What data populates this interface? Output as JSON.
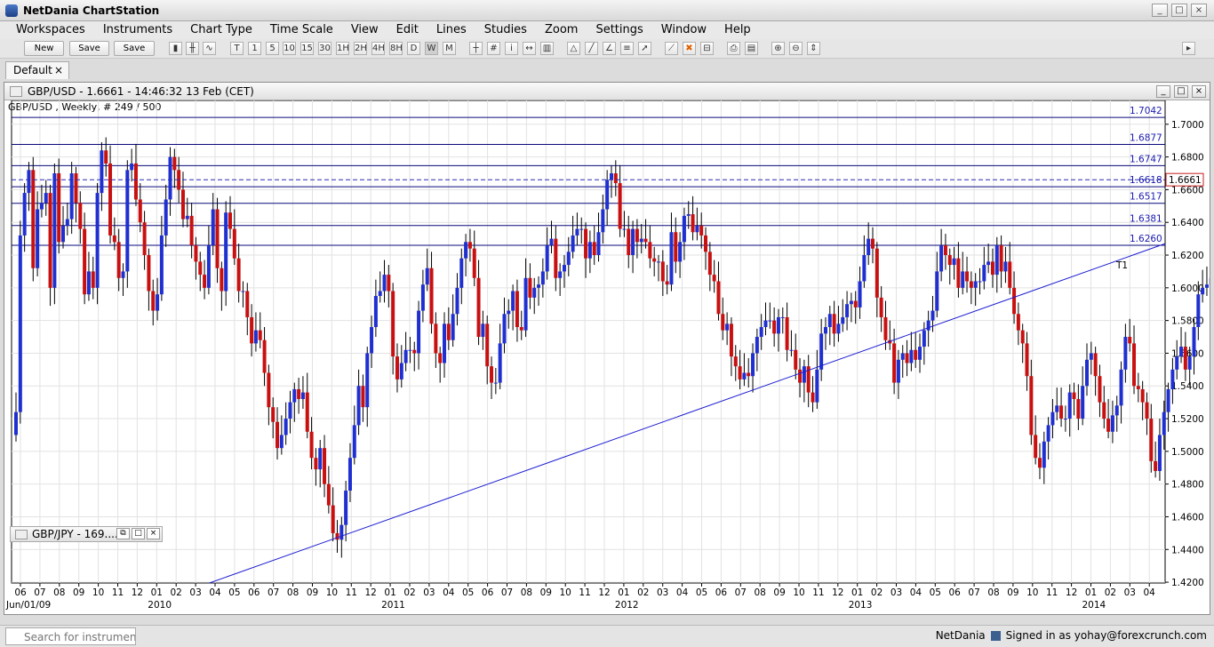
{
  "app": {
    "title": "NetDania ChartStation",
    "window_buttons": [
      "_",
      "□",
      "×"
    ]
  },
  "menu": [
    "Workspaces",
    "Instruments",
    "Chart Type",
    "Time Scale",
    "View",
    "Edit",
    "Lines",
    "Studies",
    "Zoom",
    "Settings",
    "Window",
    "Help"
  ],
  "toolbar": {
    "buttons": [
      {
        "label": "New"
      },
      {
        "label": "Save"
      },
      {
        "label": "Save as..."
      }
    ],
    "timeframes": [
      "T",
      "1",
      "5",
      "10",
      "15",
      "30",
      "1H",
      "2H",
      "4H",
      "8H",
      "D",
      "W",
      "M"
    ]
  },
  "tab": {
    "label": "Default",
    "close": "×"
  },
  "chart_window": {
    "title": "GBP/USD - 1.6661 - 14:46:32  13 Feb (CET)",
    "subtitle": "GBP/USD , Weekly, # 249 / 500",
    "window_buttons": [
      "_",
      "□",
      "×"
    ]
  },
  "minimized_window": {
    "title": "GBP/JPY - 169...."
  },
  "chart_data": {
    "type": "candlestick",
    "symbol": "GBP/USD",
    "period": "Weekly",
    "ylim": [
      1.4195,
      1.7075
    ],
    "yticks": [
      "1.7000",
      "1.6800",
      "1.6600",
      "1.6400",
      "1.6200",
      "1.6000",
      "1.5800",
      "1.5600",
      "1.5400",
      "1.5200",
      "1.5000",
      "1.4800",
      "1.4600",
      "1.4400",
      "1.4200"
    ],
    "xticks": [
      "06",
      "07",
      "08",
      "09",
      "10",
      "11",
      "12",
      "01",
      "02",
      "03",
      "04",
      "05",
      "06",
      "07",
      "08",
      "09",
      "10",
      "11",
      "12",
      "01",
      "02",
      "03",
      "04",
      "05",
      "06",
      "07",
      "08",
      "09",
      "10",
      "11",
      "12",
      "01",
      "02",
      "03",
      "04",
      "05",
      "06",
      "07",
      "08",
      "09",
      "10",
      "11",
      "12",
      "01",
      "02",
      "03",
      "04",
      "05",
      "06",
      "07",
      "08",
      "09",
      "10",
      "11",
      "12",
      "01",
      "02",
      "03",
      "04"
    ],
    "year_labels": [
      {
        "label": "Jun/01/09",
        "i": 0
      },
      {
        "label": "2010",
        "i": 7
      },
      {
        "label": "2011",
        "i": 19
      },
      {
        "label": "2012",
        "i": 31
      },
      {
        "label": "2013",
        "i": 43
      },
      {
        "label": "2014",
        "i": 55
      }
    ],
    "horizontal_lines": [
      {
        "label": "1.7042",
        "value": 1.7042
      },
      {
        "label": "1.6877",
        "value": 1.6877
      },
      {
        "label": "1.6747",
        "value": 1.6747
      },
      {
        "label": "1.6618",
        "value": 1.6618
      },
      {
        "label": "1.6517",
        "value": 1.6517
      },
      {
        "label": "1.6381",
        "value": 1.6381
      },
      {
        "label": "1.6260",
        "value": 1.626
      }
    ],
    "current_price": {
      "label": "1.6661",
      "value": 1.6661
    },
    "trendline": {
      "label": "T1",
      "start": {
        "week": "2010-05",
        "value": 1.4195
      },
      "end": {
        "week": "2014-04",
        "value": 1.627
      }
    },
    "colors": {
      "up": "#1f2fd0",
      "down": "#c81010",
      "lines": "#0a0a7a",
      "trend": "#1e1ed2",
      "price_line": "#2a2ab8",
      "price_box": "#c81e1e"
    },
    "closes": [
      1.524,
      1.632,
      1.658,
      1.672,
      1.612,
      1.648,
      1.652,
      1.658,
      1.6,
      1.67,
      1.628,
      1.638,
      1.642,
      1.67,
      1.652,
      1.636,
      1.596,
      1.61,
      1.6,
      1.658,
      1.684,
      1.676,
      1.632,
      1.628,
      1.606,
      1.61,
      1.672,
      1.676,
      1.654,
      1.64,
      1.62,
      1.598,
      1.586,
      1.596,
      1.632,
      1.654,
      1.68,
      1.672,
      1.66,
      1.642,
      1.644,
      1.626,
      1.616,
      1.608,
      1.6,
      1.626,
      1.648,
      1.612,
      1.598,
      1.646,
      1.636,
      1.618,
      1.598,
      1.598,
      1.582,
      1.566,
      1.574,
      1.568,
      1.548,
      1.527,
      1.518,
      1.502,
      1.51,
      1.52,
      1.53,
      1.538,
      1.532,
      1.536,
      1.512,
      1.496,
      1.489,
      1.502,
      1.48,
      1.467,
      1.45,
      1.446,
      1.455,
      1.476,
      1.496,
      1.516,
      1.54,
      1.527,
      1.56,
      1.576,
      1.595,
      1.598,
      1.608,
      1.598,
      1.558,
      1.544,
      1.554,
      1.562,
      1.562,
      1.56,
      1.586,
      1.602,
      1.612,
      1.578,
      1.56,
      1.554,
      1.578,
      1.568,
      1.584,
      1.6,
      1.618,
      1.628,
      1.624,
      1.606,
      1.57,
      1.578,
      1.552,
      1.542,
      1.542,
      1.566,
      1.584,
      1.586,
      1.598,
      1.576,
      1.574,
      1.606,
      1.594,
      1.6,
      1.602,
      1.61,
      1.626,
      1.63,
      1.606,
      1.61,
      1.614,
      1.622,
      1.632,
      1.636,
      1.636,
      1.618,
      1.628,
      1.62,
      1.634,
      1.648,
      1.666,
      1.67,
      1.664,
      1.636,
      1.636,
      1.62,
      1.636,
      1.628,
      1.63,
      1.628,
      1.618,
      1.616,
      1.616,
      1.604,
      1.602,
      1.634,
      1.616,
      1.628,
      1.644,
      1.645,
      1.634,
      1.638,
      1.632,
      1.622,
      1.608,
      1.604,
      1.584,
      1.574,
      1.578,
      1.558,
      1.552,
      1.544,
      1.548,
      1.546,
      1.56,
      1.57,
      1.576,
      1.58,
      1.58,
      1.572,
      1.582,
      1.582,
      1.562,
      1.562,
      1.55,
      1.542,
      1.552,
      1.536,
      1.53,
      1.55,
      1.572,
      1.576,
      1.584,
      1.572,
      1.578,
      1.582,
      1.59,
      1.592,
      1.588,
      1.604,
      1.62,
      1.63,
      1.624,
      1.594,
      1.582,
      1.568,
      1.566,
      1.542,
      1.556,
      1.56,
      1.554,
      1.562,
      1.556,
      1.564,
      1.574,
      1.58,
      1.586,
      1.61,
      1.626,
      1.62,
      1.614,
      1.618,
      1.6,
      1.61,
      1.604,
      1.6,
      1.604,
      1.604,
      1.614,
      1.616,
      1.608,
      1.626,
      1.61,
      1.616,
      1.6,
      1.584,
      1.574,
      1.566,
      1.546,
      1.51,
      1.496,
      1.49,
      1.506,
      1.516,
      1.524,
      1.528,
      1.52,
      1.52,
      1.536,
      1.532,
      1.52,
      1.54,
      1.556,
      1.56,
      1.546,
      1.53,
      1.52,
      1.512,
      1.522,
      1.528,
      1.55,
      1.57,
      1.566,
      1.54,
      1.538,
      1.53,
      1.52,
      1.494,
      1.488,
      1.51,
      1.524,
      1.538,
      1.55,
      1.558,
      1.564,
      1.55,
      1.558,
      1.576,
      1.596,
      1.6,
      1.602,
      1.606,
      1.614,
      1.604,
      1.594,
      1.592,
      1.606,
      1.612,
      1.626,
      1.634,
      1.634,
      1.63,
      1.642,
      1.644,
      1.648,
      1.636,
      1.646,
      1.64,
      1.638,
      1.666
    ],
    "opens": [
      1.51,
      1.524,
      1.632,
      1.658,
      1.672,
      1.612,
      1.648,
      1.652,
      1.658,
      1.6,
      1.67,
      1.628,
      1.638,
      1.642,
      1.67,
      1.652,
      1.636,
      1.596,
      1.61,
      1.6,
      1.658,
      1.684,
      1.676,
      1.632,
      1.628,
      1.606,
      1.61,
      1.672,
      1.676,
      1.654,
      1.64,
      1.62,
      1.598,
      1.586,
      1.596,
      1.632,
      1.654,
      1.68,
      1.672,
      1.66,
      1.642,
      1.644,
      1.626,
      1.616,
      1.608,
      1.6,
      1.626,
      1.648,
      1.612,
      1.598,
      1.646,
      1.636,
      1.618,
      1.598,
      1.598,
      1.582,
      1.566,
      1.574,
      1.568,
      1.548,
      1.527,
      1.518,
      1.502,
      1.51,
      1.52,
      1.53,
      1.538,
      1.532,
      1.536,
      1.512,
      1.496,
      1.489,
      1.502,
      1.48,
      1.467,
      1.45,
      1.446,
      1.455,
      1.476,
      1.496,
      1.516,
      1.54,
      1.527,
      1.56,
      1.576,
      1.595,
      1.598,
      1.608,
      1.598,
      1.558,
      1.544,
      1.554,
      1.562,
      1.562,
      1.56,
      1.586,
      1.602,
      1.612,
      1.578,
      1.56,
      1.554,
      1.578,
      1.568,
      1.584,
      1.6,
      1.618,
      1.628,
      1.624,
      1.606,
      1.57,
      1.578,
      1.552,
      1.542,
      1.542,
      1.566,
      1.584,
      1.586,
      1.598,
      1.576,
      1.574,
      1.606,
      1.594,
      1.6,
      1.602,
      1.61,
      1.626,
      1.63,
      1.606,
      1.61,
      1.614,
      1.622,
      1.632,
      1.636,
      1.636,
      1.618,
      1.628,
      1.62,
      1.634,
      1.648,
      1.666,
      1.67,
      1.664,
      1.636,
      1.636,
      1.62,
      1.636,
      1.628,
      1.63,
      1.628,
      1.618,
      1.616,
      1.616,
      1.604,
      1.602,
      1.634,
      1.616,
      1.628,
      1.644,
      1.645,
      1.634,
      1.638,
      1.632,
      1.622,
      1.608,
      1.604,
      1.584,
      1.574,
      1.578,
      1.558,
      1.552,
      1.544,
      1.548,
      1.546,
      1.56,
      1.57,
      1.576,
      1.58,
      1.58,
      1.572,
      1.582,
      1.582,
      1.562,
      1.562,
      1.55,
      1.542,
      1.552,
      1.536,
      1.53,
      1.55,
      1.572,
      1.576,
      1.584,
      1.572,
      1.578,
      1.582,
      1.59,
      1.592,
      1.588,
      1.604,
      1.62,
      1.63,
      1.624,
      1.594,
      1.582,
      1.568,
      1.566,
      1.542,
      1.556,
      1.56,
      1.554,
      1.562,
      1.556,
      1.564,
      1.574,
      1.58,
      1.586,
      1.61,
      1.626,
      1.62,
      1.614,
      1.618,
      1.6,
      1.61,
      1.604,
      1.6,
      1.604,
      1.604,
      1.614,
      1.616,
      1.608,
      1.626,
      1.61,
      1.616,
      1.6,
      1.584,
      1.574,
      1.566,
      1.546,
      1.51,
      1.496,
      1.49,
      1.506,
      1.516,
      1.524,
      1.528,
      1.52,
      1.52,
      1.536,
      1.532,
      1.52,
      1.54,
      1.556,
      1.56,
      1.546,
      1.53,
      1.52,
      1.512,
      1.522,
      1.528,
      1.55,
      1.57,
      1.566,
      1.54,
      1.538,
      1.53,
      1.52,
      1.494,
      1.488,
      1.51,
      1.524,
      1.538,
      1.55,
      1.558,
      1.564,
      1.55,
      1.558,
      1.576,
      1.596,
      1.6,
      1.602,
      1.606,
      1.614,
      1.604,
      1.594,
      1.592,
      1.606,
      1.612,
      1.626,
      1.634,
      1.634,
      1.63,
      1.642,
      1.644,
      1.648,
      1.636,
      1.646,
      1.64,
      1.638
    ]
  },
  "status": {
    "search_placeholder": "Search for instrument",
    "brand": "NetDania",
    "signed_in": "Signed in as yohay@forexcrunch.com"
  }
}
